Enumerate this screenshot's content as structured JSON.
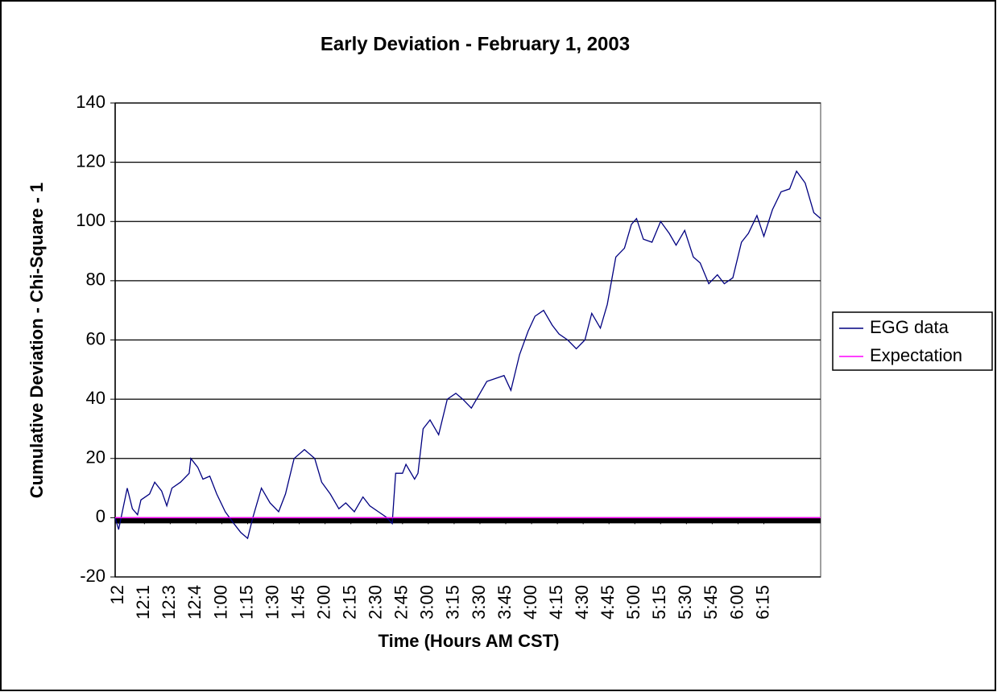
{
  "chart_data": {
    "type": "line",
    "title": "Early Deviation - February 1, 2003",
    "x_label": "Time (Hours AM CST)",
    "y_label": "Cumulative Deviation - Chi-Square - 1",
    "x": [
      -2,
      0,
      5,
      8,
      11,
      13,
      18,
      21,
      25,
      28,
      31,
      36,
      41,
      42,
      46,
      49,
      53,
      57,
      62,
      67,
      71,
      75,
      78,
      83,
      88,
      93,
      97,
      102,
      108,
      114,
      118,
      123,
      128,
      132,
      137,
      142,
      146,
      151,
      156,
      159,
      161,
      165,
      167,
      172,
      174,
      177,
      181,
      186,
      191,
      196,
      200,
      205,
      210,
      214,
      219,
      224,
      228,
      233,
      238,
      242,
      247,
      252,
      256,
      261,
      266,
      271,
      275,
      280,
      284,
      289,
      294,
      298,
      301,
      305,
      310,
      315,
      320,
      324,
      329,
      334,
      338,
      343,
      348,
      352,
      357,
      362,
      366,
      371,
      375,
      380,
      385,
      390,
      394,
      399,
      404,
      408
    ],
    "series": [
      {
        "name": "EGG data",
        "color": "#000080",
        "values": [
          0,
          -4,
          10,
          3,
          1,
          6,
          8,
          12,
          9,
          4,
          10,
          12,
          15,
          20,
          17,
          13,
          14,
          8,
          2,
          -2,
          -5,
          -7,
          0,
          10,
          5,
          2,
          8,
          20,
          23,
          20,
          12,
          8,
          3,
          5,
          2,
          7,
          4,
          2,
          0,
          -2,
          15,
          15,
          18,
          13,
          15,
          30,
          33,
          28,
          40,
          42,
          40,
          37,
          42,
          46,
          47,
          48,
          43,
          55,
          63,
          68,
          70,
          65,
          62,
          60,
          57,
          60,
          69,
          64,
          72,
          88,
          91,
          99,
          101,
          94,
          93,
          100,
          96,
          92,
          97,
          88,
          86,
          79,
          82,
          79,
          81,
          93,
          96,
          102,
          95,
          104,
          110,
          111,
          117,
          113,
          103,
          101
        ]
      },
      {
        "name": "Expectation",
        "color": "#ff00ff",
        "values": [
          0,
          0,
          0,
          0,
          0,
          0,
          0,
          0,
          0,
          0,
          0,
          0,
          0,
          0,
          0,
          0,
          0,
          0,
          0,
          0,
          0,
          0,
          0,
          0,
          0,
          0,
          0,
          0,
          0,
          0,
          0,
          0,
          0,
          0,
          0,
          0,
          0,
          0,
          0,
          0,
          0,
          0,
          0,
          0,
          0,
          0,
          0,
          0,
          0,
          0,
          0,
          0,
          0,
          0,
          0,
          0,
          0,
          0,
          0,
          0,
          0,
          0,
          0,
          0,
          0,
          0,
          0,
          0,
          0,
          0,
          0,
          0,
          0,
          0,
          0,
          0,
          0,
          0,
          0,
          0,
          0,
          0,
          0,
          0,
          0,
          0,
          0,
          0,
          0,
          0,
          0,
          0,
          0,
          0,
          0,
          0
        ]
      }
    ],
    "xlim": [
      -2,
      408
    ],
    "xticks": [
      {
        "value": 0,
        "label": "12"
      },
      {
        "value": 15,
        "label": "12:1"
      },
      {
        "value": 30,
        "label": "12:3"
      },
      {
        "value": 45,
        "label": "12:4"
      },
      {
        "value": 60,
        "label": "1:00"
      },
      {
        "value": 75,
        "label": "1:15"
      },
      {
        "value": 90,
        "label": "1:30"
      },
      {
        "value": 105,
        "label": "1:45"
      },
      {
        "value": 120,
        "label": "2:00"
      },
      {
        "value": 135,
        "label": "2:15"
      },
      {
        "value": 150,
        "label": "2:30"
      },
      {
        "value": 165,
        "label": "2:45"
      },
      {
        "value": 180,
        "label": "3:00"
      },
      {
        "value": 195,
        "label": "3:15"
      },
      {
        "value": 210,
        "label": "3:30"
      },
      {
        "value": 225,
        "label": "3:45"
      },
      {
        "value": 240,
        "label": "4:00"
      },
      {
        "value": 255,
        "label": "4:15"
      },
      {
        "value": 270,
        "label": "4:30"
      },
      {
        "value": 285,
        "label": "4:45"
      },
      {
        "value": 300,
        "label": "5:00"
      },
      {
        "value": 315,
        "label": "5:15"
      },
      {
        "value": 330,
        "label": "5:30"
      },
      {
        "value": 345,
        "label": "5:45"
      },
      {
        "value": 360,
        "label": "6:00"
      },
      {
        "value": 375,
        "label": "6:15"
      }
    ],
    "ylim": [
      -20,
      140
    ],
    "yticks": [
      -20,
      0,
      20,
      40,
      60,
      80,
      100,
      120,
      140
    ],
    "grid": true,
    "legend": "right"
  }
}
